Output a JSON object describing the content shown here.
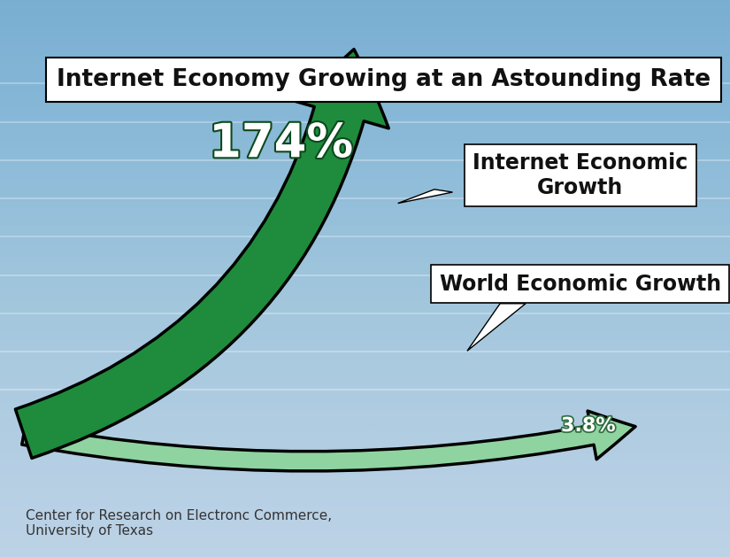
{
  "chart_data": {
    "type": "arrow",
    "title": "Internet Economy Growing at an Astounding Rate",
    "categories": [
      "Internet Economic Growth",
      "World Economic Growth"
    ],
    "values": [
      174,
      3.8
    ],
    "value_labels": [
      "174%",
      "3.8%"
    ],
    "data_labels": true,
    "colors": [
      "#1e8c3c",
      "#8fd3a0"
    ],
    "ylim": [
      0,
      180
    ],
    "tick_labels": false,
    "source": "Center for Research on Electronc Commerce,\nUniversity of Texas"
  }
}
